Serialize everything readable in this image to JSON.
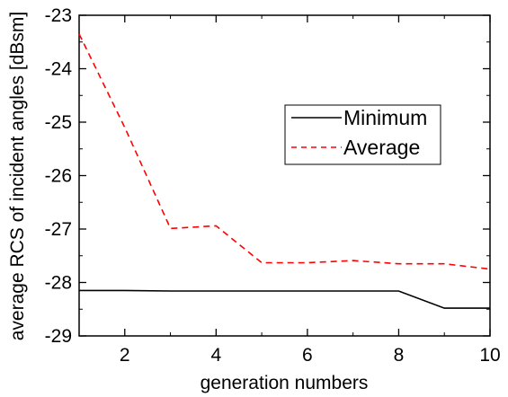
{
  "chart_data": {
    "type": "line",
    "title": "",
    "xlabel": "generation numbers",
    "ylabel": "average RCS of incident angles [dBsm]",
    "xlim": [
      1,
      10
    ],
    "ylim": [
      -29,
      -23
    ],
    "xticks": [
      2,
      4,
      6,
      8,
      10
    ],
    "yticks": [
      -23,
      -24,
      -25,
      -26,
      -27,
      -28,
      -29
    ],
    "xtick_labels": [
      "2",
      "4",
      "6",
      "8",
      "10"
    ],
    "ytick_labels": [
      "-23",
      "-24",
      "-25",
      "-26",
      "-27",
      "-28",
      "-29"
    ],
    "grid": false,
    "legend_position": "upper-right",
    "series": [
      {
        "name": "Minimum",
        "style": "solid",
        "color": "#000000",
        "x": [
          1,
          2,
          3,
          4,
          5,
          6,
          7,
          8,
          9,
          10
        ],
        "y": [
          -28.15,
          -28.15,
          -28.16,
          -28.16,
          -28.16,
          -28.16,
          -28.16,
          -28.16,
          -28.48,
          -28.48
        ]
      },
      {
        "name": "Average",
        "style": "dashed",
        "color": "#ff0000",
        "x": [
          1,
          2,
          3,
          4,
          5,
          6,
          7,
          8,
          9,
          10
        ],
        "y": [
          -23.35,
          -25.1,
          -26.99,
          -26.94,
          -27.63,
          -27.63,
          -27.59,
          -27.65,
          -27.65,
          -27.75
        ]
      }
    ]
  }
}
